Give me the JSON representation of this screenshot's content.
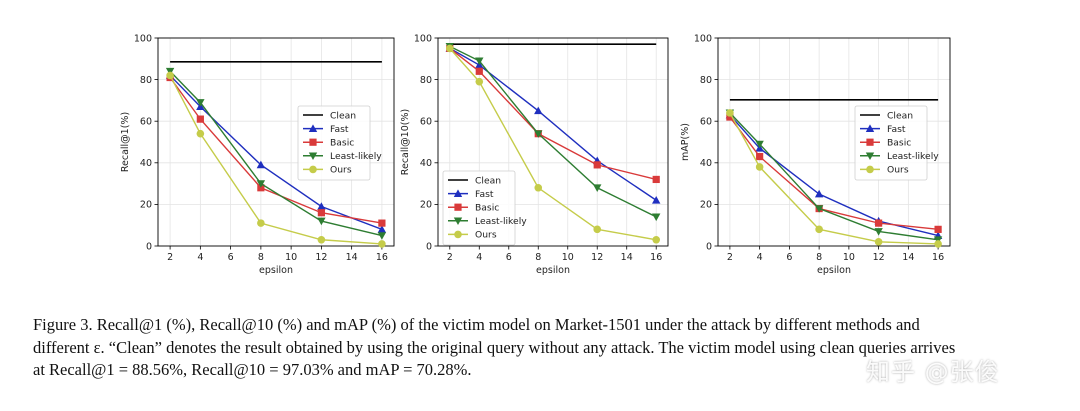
{
  "figure": {
    "caption_line1": "Figure 3. Recall@1 (%), Recall@10 (%) and mAP (%) of the victim model on Market-1501 under the attack by different methods and",
    "caption_line2": "different ε. “Clean” denotes the result obtained by using the original query without any attack. The victim model using clean queries arrives",
    "caption_line3": "at Recall@1 = 88.56%, Recall@10 = 97.03% and mAP = 70.28%.",
    "watermark": "知乎 @张俊"
  },
  "colors": {
    "Clean": "#000000",
    "Fast": "#1f2fbf",
    "Basic": "#d93a3a",
    "Least-likely": "#2e7d32",
    "Ours": "#c5cc4a"
  },
  "chart_data": [
    {
      "type": "line",
      "xlabel": "epsilon",
      "ylabel": "Recall@1(%)",
      "xlim": [
        1.2,
        16.8
      ],
      "ylim": [
        0,
        100
      ],
      "xticks": [
        2,
        4,
        6,
        8,
        10,
        12,
        14,
        16
      ],
      "yticks": [
        0,
        20,
        40,
        60,
        80,
        100
      ],
      "legend_position": "center-right",
      "series": [
        {
          "name": "Clean",
          "marker": "none",
          "x": [
            2,
            16
          ],
          "values": [
            88.56,
            88.56
          ]
        },
        {
          "name": "Fast",
          "marker": "triangle-up",
          "x": [
            2,
            4,
            8,
            12,
            16
          ],
          "values": [
            82,
            67,
            39,
            19,
            8
          ]
        },
        {
          "name": "Basic",
          "marker": "square",
          "x": [
            2,
            4,
            8,
            12,
            16
          ],
          "values": [
            81,
            61,
            28,
            16,
            11
          ]
        },
        {
          "name": "Least-likely",
          "marker": "triangle-down",
          "x": [
            2,
            4,
            8,
            12,
            16
          ],
          "values": [
            84,
            69,
            30,
            12,
            5
          ]
        },
        {
          "name": "Ours",
          "marker": "circle",
          "x": [
            2,
            4,
            8,
            12,
            16
          ],
          "values": [
            82,
            54,
            11,
            3,
            1
          ]
        }
      ]
    },
    {
      "type": "line",
      "xlabel": "epsilon",
      "ylabel": "Recall@10(%)",
      "xlim": [
        1.2,
        16.8
      ],
      "ylim": [
        0,
        100
      ],
      "xticks": [
        2,
        4,
        6,
        8,
        10,
        12,
        14,
        16
      ],
      "yticks": [
        0,
        20,
        40,
        60,
        80,
        100
      ],
      "legend_position": "lower-left",
      "series": [
        {
          "name": "Clean",
          "marker": "none",
          "x": [
            2,
            16
          ],
          "values": [
            97.03,
            97.03
          ]
        },
        {
          "name": "Fast",
          "marker": "triangle-up",
          "x": [
            2,
            4,
            8,
            12,
            16
          ],
          "values": [
            95,
            87,
            65,
            41,
            22
          ]
        },
        {
          "name": "Basic",
          "marker": "square",
          "x": [
            2,
            4,
            8,
            12,
            16
          ],
          "values": [
            95,
            84,
            54,
            39,
            32
          ]
        },
        {
          "name": "Least-likely",
          "marker": "triangle-down",
          "x": [
            2,
            4,
            8,
            12,
            16
          ],
          "values": [
            96,
            89,
            54,
            28,
            14
          ]
        },
        {
          "name": "Ours",
          "marker": "circle",
          "x": [
            2,
            4,
            8,
            12,
            16
          ],
          "values": [
            95,
            79,
            28,
            8,
            3
          ]
        }
      ]
    },
    {
      "type": "line",
      "xlabel": "epsilon",
      "ylabel": "mAP(%)",
      "xlim": [
        1.2,
        16.8
      ],
      "ylim": [
        0,
        100
      ],
      "xticks": [
        2,
        4,
        6,
        8,
        10,
        12,
        14,
        16
      ],
      "yticks": [
        0,
        20,
        40,
        60,
        80,
        100
      ],
      "legend_position": "center-right",
      "series": [
        {
          "name": "Clean",
          "marker": "none",
          "x": [
            2,
            16
          ],
          "values": [
            70.28,
            70.28
          ]
        },
        {
          "name": "Fast",
          "marker": "triangle-up",
          "x": [
            2,
            4,
            8,
            12,
            16
          ],
          "values": [
            63,
            47,
            25,
            12,
            5
          ]
        },
        {
          "name": "Basic",
          "marker": "square",
          "x": [
            2,
            4,
            8,
            12,
            16
          ],
          "values": [
            62,
            43,
            18,
            11,
            8
          ]
        },
        {
          "name": "Least-likely",
          "marker": "triangle-down",
          "x": [
            2,
            4,
            8,
            12,
            16
          ],
          "values": [
            64,
            49,
            18,
            7,
            3
          ]
        },
        {
          "name": "Ours",
          "marker": "circle",
          "x": [
            2,
            4,
            8,
            12,
            16
          ],
          "values": [
            64,
            38,
            8,
            2,
            1
          ]
        }
      ]
    }
  ]
}
